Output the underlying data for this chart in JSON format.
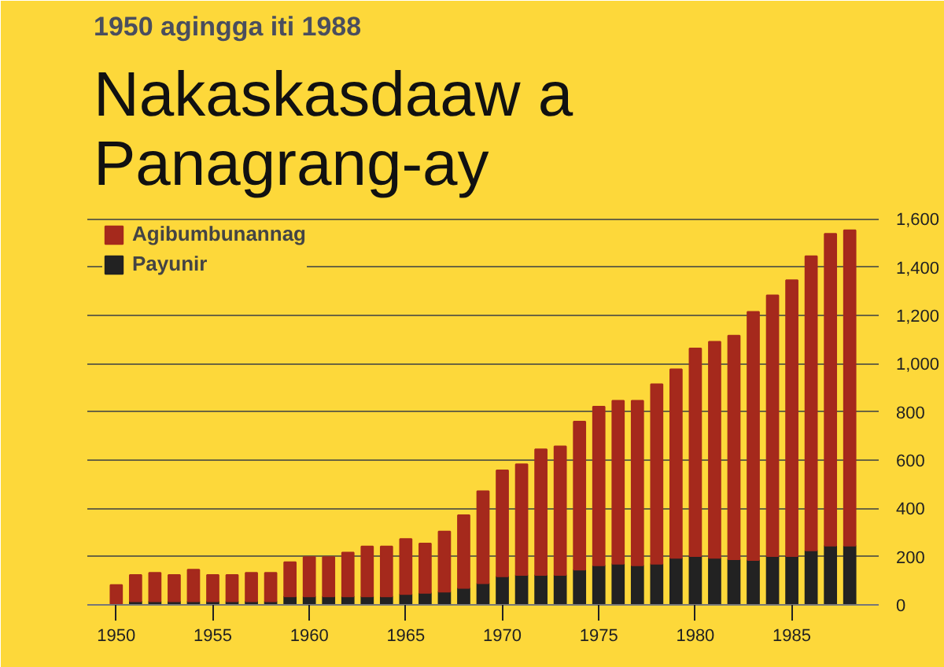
{
  "chart_data": {
    "type": "bar",
    "subtitle": "1950 agingga iti 1988",
    "title": "Nakaskasdaaw a Panagrang-ay",
    "x": [
      1950,
      1951,
      1952,
      1953,
      1954,
      1955,
      1956,
      1957,
      1958,
      1959,
      1960,
      1961,
      1962,
      1963,
      1964,
      1965,
      1966,
      1967,
      1968,
      1969,
      1970,
      1971,
      1972,
      1973,
      1974,
      1975,
      1976,
      1977,
      1978,
      1979,
      1980,
      1981,
      1982,
      1983,
      1984,
      1985,
      1986,
      1987,
      1988
    ],
    "stacked": true,
    "series": [
      {
        "name": "Payunir",
        "color": "#222222",
        "values": [
          null,
          15,
          15,
          15,
          15,
          15,
          15,
          15,
          15,
          35,
          35,
          35,
          35,
          35,
          35,
          45,
          50,
          55,
          70,
          90,
          118,
          124,
          124,
          124,
          146,
          164,
          170,
          164,
          170,
          195,
          202,
          195,
          189,
          186,
          202,
          202,
          226,
          245,
          245
        ]
      },
      {
        "name": "Agibumbunannag",
        "color": "#a5291c",
        "values": [
          82,
          109,
          118,
          109,
          131,
          109,
          109,
          118,
          118,
          142,
          163,
          163,
          182,
          207,
          207,
          228,
          204,
          249,
          302,
          381,
          440,
          459,
          521,
          533,
          614,
          658,
          676,
          682,
          745,
          782,
          861,
          896,
          927,
          1029,
          1081,
          1144,
          1219,
          1293,
          1308
        ]
      }
    ],
    "xlim": [
      1948.5,
      1989.5
    ],
    "xticks": [
      1950,
      1955,
      1960,
      1965,
      1970,
      1975,
      1980,
      1985
    ],
    "ylim": [
      0,
      1650
    ],
    "yticks": [
      0,
      200,
      400,
      {
        "value": 600,
        "label": "600"
      },
      800,
      {
        "value": 1000,
        "label": "1,000"
      },
      {
        "value": 1200,
        "label": "1,200"
      },
      {
        "value": 1400,
        "label": "1,400"
      },
      {
        "value": 1600,
        "label": "1,600"
      }
    ],
    "grid": "y",
    "legend": "top left"
  }
}
